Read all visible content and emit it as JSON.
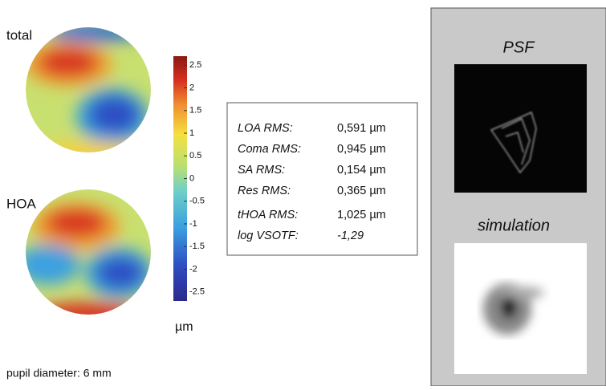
{
  "maps": [
    {
      "label": "total"
    },
    {
      "label": "HOA"
    }
  ],
  "colorbar": {
    "lim": [
      -2.7,
      2.7
    ],
    "ticks": [
      2.5,
      2,
      1.5,
      1,
      0.5,
      0,
      -0.5,
      -1,
      -1.5,
      -2,
      -2.5
    ],
    "unit": "µm"
  },
  "table": {
    "rows": [
      [
        "LOA RMS:",
        "0,591 µm"
      ],
      [
        "Coma RMS:",
        "0,945 µm"
      ],
      [
        "SA RMS:",
        "0,154 µm"
      ],
      [
        "Res RMS:",
        "0,365 µm"
      ],
      [
        "tHOA RMS:",
        "1,025 µm"
      ],
      [
        "log VSOTF:",
        "-1,29"
      ]
    ]
  },
  "panel": {
    "psf_label": "PSF",
    "simulation_label": "simulation"
  },
  "footer": {
    "pupil_diameter": "pupil diameter:  6 mm"
  }
}
